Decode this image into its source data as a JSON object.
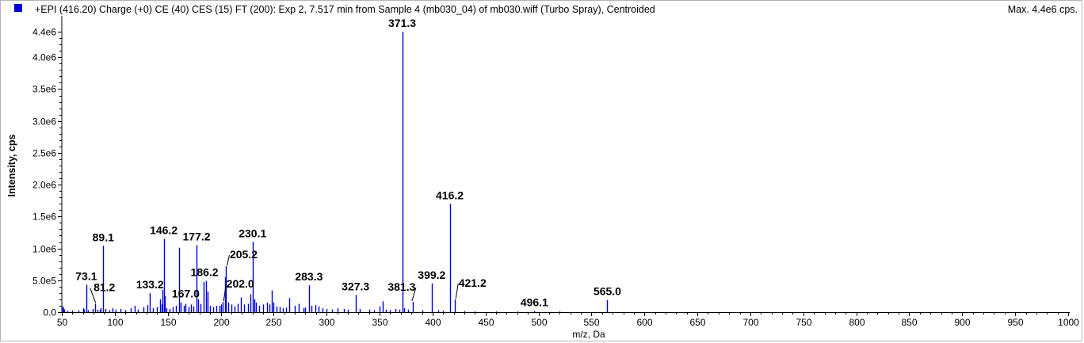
{
  "header": {
    "legend_color": "#0000d8",
    "title": "+EPI (416.20) Charge (+0) CE (40) CES (15) FT (200): Exp 2, 7.517 min from Sample 4 (mb030_04) of mb030.wiff (Turbo Spray), Centroided",
    "max_label": "Max. 4.4e6 cps."
  },
  "chart_data": {
    "type": "bar",
    "xlabel": "m/z, Da",
    "ylabel": "Intensity, cps",
    "xlim": [
      50,
      1000
    ],
    "ylim": [
      0,
      4600000
    ],
    "x_ticks": [
      {
        "value": 50,
        "label": "50"
      },
      {
        "value": 100,
        "label": "100"
      },
      {
        "value": 150,
        "label": "150"
      },
      {
        "value": 200,
        "label": "200"
      },
      {
        "value": 250,
        "label": "250"
      },
      {
        "value": 300,
        "label": "300"
      },
      {
        "value": 350,
        "label": "350"
      },
      {
        "value": 400,
        "label": "400"
      },
      {
        "value": 450,
        "label": "450"
      },
      {
        "value": 500,
        "label": "500"
      },
      {
        "value": 550,
        "label": "550"
      },
      {
        "value": 600,
        "label": "600"
      },
      {
        "value": 650,
        "label": "650"
      },
      {
        "value": 700,
        "label": "700"
      },
      {
        "value": 750,
        "label": "750"
      },
      {
        "value": 800,
        "label": "800"
      },
      {
        "value": 850,
        "label": "850"
      },
      {
        "value": 900,
        "label": "900"
      },
      {
        "value": 950,
        "label": "950"
      },
      {
        "value": 1000,
        "label": "1000"
      }
    ],
    "y_ticks": [
      {
        "value": 0,
        "label": "0.0"
      },
      {
        "value": 500000,
        "label": "5.0e5"
      },
      {
        "value": 1000000,
        "label": "1.0e6"
      },
      {
        "value": 1500000,
        "label": "1.5e6"
      },
      {
        "value": 2000000,
        "label": "2.0e6"
      },
      {
        "value": 2500000,
        "label": "2.5e6"
      },
      {
        "value": 3000000,
        "label": "3.0e6"
      },
      {
        "value": 3500000,
        "label": "3.5e6"
      },
      {
        "value": 4000000,
        "label": "4.0e6"
      },
      {
        "value": 4400000,
        "label": "4.4e6"
      }
    ],
    "series_color": "#0000d8",
    "peaks": [
      {
        "mz": 50.5,
        "intensity": 90000
      },
      {
        "mz": 51.2,
        "intensity": 60000
      },
      {
        "mz": 52.0,
        "intensity": 40000
      },
      {
        "mz": 55.0,
        "intensity": 20000
      },
      {
        "mz": 60.0,
        "intensity": 25000
      },
      {
        "mz": 66.0,
        "intensity": 30000
      },
      {
        "mz": 70.0,
        "intensity": 60000
      },
      {
        "mz": 71.0,
        "intensity": 40000
      },
      {
        "mz": 73.1,
        "intensity": 430000
      },
      {
        "mz": 75.0,
        "intensity": 30000
      },
      {
        "mz": 79.0,
        "intensity": 50000
      },
      {
        "mz": 81.2,
        "intensity": 130000
      },
      {
        "mz": 84.0,
        "intensity": 40000
      },
      {
        "mz": 86.0,
        "intensity": 30000
      },
      {
        "mz": 87.0,
        "intensity": 60000
      },
      {
        "mz": 89.1,
        "intensity": 1040000
      },
      {
        "mz": 91.0,
        "intensity": 50000
      },
      {
        "mz": 95.0,
        "intensity": 30000
      },
      {
        "mz": 98.0,
        "intensity": 60000
      },
      {
        "mz": 101.0,
        "intensity": 40000
      },
      {
        "mz": 105.0,
        "intensity": 50000
      },
      {
        "mz": 110.0,
        "intensity": 30000
      },
      {
        "mz": 115.0,
        "intensity": 60000
      },
      {
        "mz": 119.0,
        "intensity": 100000
      },
      {
        "mz": 122.0,
        "intensity": 40000
      },
      {
        "mz": 127.0,
        "intensity": 80000
      },
      {
        "mz": 131.0,
        "intensity": 110000
      },
      {
        "mz": 133.2,
        "intensity": 300000
      },
      {
        "mz": 136.0,
        "intensity": 60000
      },
      {
        "mz": 140.0,
        "intensity": 80000
      },
      {
        "mz": 143.0,
        "intensity": 200000
      },
      {
        "mz": 144.0,
        "intensity": 120000
      },
      {
        "mz": 145.0,
        "intensity": 350000
      },
      {
        "mz": 146.2,
        "intensity": 1150000
      },
      {
        "mz": 147.0,
        "intensity": 250000
      },
      {
        "mz": 149.0,
        "intensity": 60000
      },
      {
        "mz": 152.0,
        "intensity": 50000
      },
      {
        "mz": 155.0,
        "intensity": 80000
      },
      {
        "mz": 158.0,
        "intensity": 100000
      },
      {
        "mz": 161.0,
        "intensity": 1010000
      },
      {
        "mz": 162.5,
        "intensity": 150000
      },
      {
        "mz": 165.0,
        "intensity": 100000
      },
      {
        "mz": 167.0,
        "intensity": 130000
      },
      {
        "mz": 170.0,
        "intensity": 80000
      },
      {
        "mz": 172.0,
        "intensity": 120000
      },
      {
        "mz": 174.0,
        "intensity": 90000
      },
      {
        "mz": 177.2,
        "intensity": 1050000
      },
      {
        "mz": 178.5,
        "intensity": 200000
      },
      {
        "mz": 181.0,
        "intensity": 130000
      },
      {
        "mz": 184.0,
        "intensity": 470000
      },
      {
        "mz": 186.2,
        "intensity": 490000
      },
      {
        "mz": 188.0,
        "intensity": 320000
      },
      {
        "mz": 190.0,
        "intensity": 100000
      },
      {
        "mz": 193.0,
        "intensity": 80000
      },
      {
        "mz": 196.0,
        "intensity": 100000
      },
      {
        "mz": 199.0,
        "intensity": 100000
      },
      {
        "mz": 200.5,
        "intensity": 120000
      },
      {
        "mz": 202.0,
        "intensity": 160000
      },
      {
        "mz": 204.0,
        "intensity": 550000
      },
      {
        "mz": 205.2,
        "intensity": 720000
      },
      {
        "mz": 207.0,
        "intensity": 150000
      },
      {
        "mz": 210.0,
        "intensity": 120000
      },
      {
        "mz": 213.0,
        "intensity": 90000
      },
      {
        "mz": 216.0,
        "intensity": 130000
      },
      {
        "mz": 219.0,
        "intensity": 230000
      },
      {
        "mz": 222.0,
        "intensity": 120000
      },
      {
        "mz": 226.0,
        "intensity": 130000
      },
      {
        "mz": 228.0,
        "intensity": 280000
      },
      {
        "mz": 230.1,
        "intensity": 1100000
      },
      {
        "mz": 231.5,
        "intensity": 200000
      },
      {
        "mz": 233.0,
        "intensity": 150000
      },
      {
        "mz": 236.0,
        "intensity": 100000
      },
      {
        "mz": 240.0,
        "intensity": 120000
      },
      {
        "mz": 244.0,
        "intensity": 150000
      },
      {
        "mz": 246.0,
        "intensity": 120000
      },
      {
        "mz": 248.0,
        "intensity": 340000
      },
      {
        "mz": 250.0,
        "intensity": 150000
      },
      {
        "mz": 253.0,
        "intensity": 90000
      },
      {
        "mz": 256.0,
        "intensity": 80000
      },
      {
        "mz": 259.0,
        "intensity": 60000
      },
      {
        "mz": 262.0,
        "intensity": 70000
      },
      {
        "mz": 265.0,
        "intensity": 220000
      },
      {
        "mz": 270.0,
        "intensity": 100000
      },
      {
        "mz": 274.0,
        "intensity": 130000
      },
      {
        "mz": 278.0,
        "intensity": 60000
      },
      {
        "mz": 280.0,
        "intensity": 70000
      },
      {
        "mz": 283.3,
        "intensity": 420000
      },
      {
        "mz": 286.0,
        "intensity": 100000
      },
      {
        "mz": 289.0,
        "intensity": 110000
      },
      {
        "mz": 292.0,
        "intensity": 90000
      },
      {
        "mz": 296.0,
        "intensity": 60000
      },
      {
        "mz": 300.0,
        "intensity": 50000
      },
      {
        "mz": 305.0,
        "intensity": 40000
      },
      {
        "mz": 310.0,
        "intensity": 60000
      },
      {
        "mz": 316.0,
        "intensity": 50000
      },
      {
        "mz": 320.0,
        "intensity": 40000
      },
      {
        "mz": 327.3,
        "intensity": 270000
      },
      {
        "mz": 331.0,
        "intensity": 50000
      },
      {
        "mz": 340.0,
        "intensity": 40000
      },
      {
        "mz": 345.0,
        "intensity": 30000
      },
      {
        "mz": 350.0,
        "intensity": 90000
      },
      {
        "mz": 353.0,
        "intensity": 170000
      },
      {
        "mz": 356.0,
        "intensity": 40000
      },
      {
        "mz": 360.0,
        "intensity": 30000
      },
      {
        "mz": 365.0,
        "intensity": 50000
      },
      {
        "mz": 369.0,
        "intensity": 40000
      },
      {
        "mz": 371.3,
        "intensity": 4400000
      },
      {
        "mz": 373.0,
        "intensity": 60000
      },
      {
        "mz": 377.0,
        "intensity": 40000
      },
      {
        "mz": 381.3,
        "intensity": 160000
      },
      {
        "mz": 390.0,
        "intensity": 30000
      },
      {
        "mz": 399.2,
        "intensity": 450000
      },
      {
        "mz": 405.0,
        "intensity": 30000
      },
      {
        "mz": 410.0,
        "intensity": 20000
      },
      {
        "mz": 416.2,
        "intensity": 1700000
      },
      {
        "mz": 421.2,
        "intensity": 200000
      },
      {
        "mz": 430.0,
        "intensity": 15000
      },
      {
        "mz": 440.0,
        "intensity": 10000
      },
      {
        "mz": 460.0,
        "intensity": 10000
      },
      {
        "mz": 480.0,
        "intensity": 10000
      },
      {
        "mz": 496.1,
        "intensity": 20000
      },
      {
        "mz": 520.0,
        "intensity": 10000
      },
      {
        "mz": 565.0,
        "intensity": 190000
      }
    ],
    "annotations": [
      {
        "mz": 73.1,
        "intensity": 430000,
        "label": "73.1"
      },
      {
        "mz": 81.2,
        "intensity": 130000,
        "label": "81.2",
        "dx": 12,
        "dy": -10,
        "leader": true
      },
      {
        "mz": 89.1,
        "intensity": 1040000,
        "label": "89.1"
      },
      {
        "mz": 133.2,
        "intensity": 300000,
        "label": "133.2"
      },
      {
        "mz": 146.2,
        "intensity": 1150000,
        "label": "146.2"
      },
      {
        "mz": 167.0,
        "intensity": 130000,
        "label": "167.0",
        "dx": 0,
        "dy": -2
      },
      {
        "mz": 177.2,
        "intensity": 1050000,
        "label": "177.2"
      },
      {
        "mz": 186.2,
        "intensity": 490000,
        "label": "186.2",
        "dx": -2,
        "dy": 0
      },
      {
        "mz": 202.0,
        "intensity": 160000,
        "label": "202.0",
        "dx": 22,
        "dy": -12,
        "leader": true
      },
      {
        "mz": 205.2,
        "intensity": 720000,
        "label": "205.2",
        "dx": 22,
        "dy": -4,
        "leader": true
      },
      {
        "mz": 230.1,
        "intensity": 1100000,
        "label": "230.1"
      },
      {
        "mz": 283.3,
        "intensity": 420000,
        "label": "283.3"
      },
      {
        "mz": 327.3,
        "intensity": 270000,
        "label": "327.3"
      },
      {
        "mz": 371.3,
        "intensity": 4400000,
        "label": "371.3"
      },
      {
        "mz": 381.3,
        "intensity": 160000,
        "label": "381.3",
        "dx": -14,
        "dy": -8,
        "leader": true
      },
      {
        "mz": 399.2,
        "intensity": 450000,
        "label": "399.2"
      },
      {
        "mz": 416.2,
        "intensity": 1700000,
        "label": "416.2"
      },
      {
        "mz": 421.2,
        "intensity": 200000,
        "label": "421.2",
        "dx": 22,
        "dy": -10,
        "leader": true
      },
      {
        "mz": 496.1,
        "intensity": 20000,
        "label": "496.1"
      },
      {
        "mz": 565.0,
        "intensity": 190000,
        "label": "565.0"
      }
    ]
  }
}
